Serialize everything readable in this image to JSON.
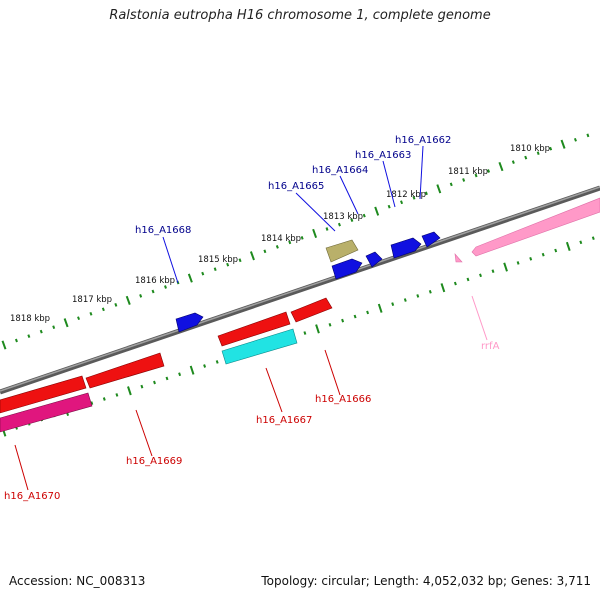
{
  "title": "Ralstonia eutropha H16 chromosome 1, complete genome",
  "footer": {
    "accession": "Accession: NC_008313",
    "summary": "Topology: circular; Length: 4,052,032 bp; Genes: 3,711"
  },
  "colors": {
    "backbone": "#808080",
    "tick": "#1e8a1e",
    "forward_cds": "#1010e0",
    "forward_other": "#b9b06a",
    "reverse_cds": "#ee1111",
    "reverse_other": "#21e3e3",
    "rrna": "#ff99c8",
    "label_forward": "#00008b",
    "label_reverse": "#cc0000",
    "label_rrna": "#ff99c8"
  },
  "ruler_labels": [
    "1818 kbp",
    "1817 kbp",
    "1816 kbp",
    "1815 kbp",
    "1814 kbp",
    "1813 kbp",
    "1812 kbp",
    "1811 kbp",
    "1810 kbp"
  ],
  "gene_labels_forward": [
    "h16_A1668",
    "h16_A1665",
    "h16_A1664",
    "h16_A1663",
    "h16_A1662"
  ],
  "gene_labels_reverse": [
    "h16_A1670",
    "h16_A1669",
    "h16_A1667",
    "h16_A1666"
  ],
  "rrna_label": "rrfA"
}
